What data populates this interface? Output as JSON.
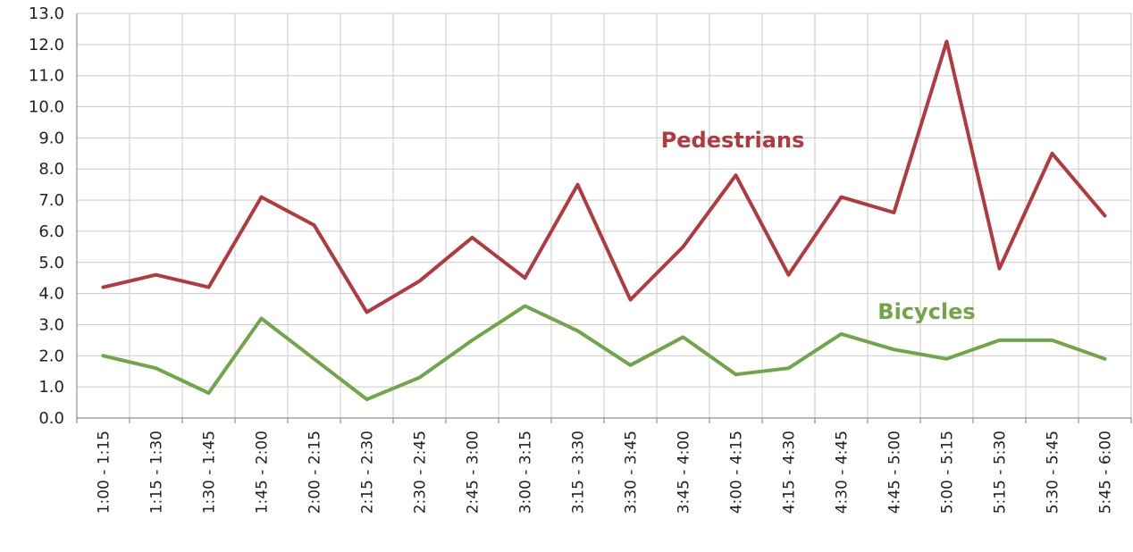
{
  "chart_data": {
    "type": "line",
    "title": "",
    "xlabel": "",
    "ylabel": "",
    "categories": [
      "1:00 - 1:15",
      "1:15 - 1:30",
      "1:30 - 1:45",
      "1:45 - 2:00",
      "2:00 - 2:15",
      "2:15 - 2:30",
      "2:30 - 2:45",
      "2:45 - 3:00",
      "3:00 - 3:15",
      "3:15 - 3:30",
      "3:30 - 3:45",
      "3:45 - 4:00",
      "4:00 - 4:15",
      "4:15 - 4:30",
      "4:30 - 4:45",
      "4:45 - 5:00",
      "5:00 - 5:15",
      "5:15 - 5:30",
      "5:30 - 5:45",
      "5:45 - 6:00"
    ],
    "series": [
      {
        "name": "Pedestrians",
        "color": "#b23a3f",
        "values": [
          4.2,
          4.6,
          4.2,
          7.1,
          6.2,
          3.4,
          4.4,
          5.8,
          4.5,
          7.5,
          3.8,
          5.5,
          7.8,
          4.6,
          7.1,
          6.6,
          12.1,
          4.8,
          8.5,
          6.5
        ]
      },
      {
        "name": "Bicycles",
        "color": "#70a548",
        "values": [
          2.0,
          1.6,
          0.8,
          3.2,
          1.9,
          0.6,
          1.3,
          2.5,
          3.6,
          2.8,
          1.7,
          2.6,
          1.4,
          1.6,
          2.7,
          2.2,
          1.9,
          2.5,
          2.5,
          1.9
        ]
      }
    ],
    "ylim": [
      0,
      13
    ],
    "yticks": [
      "0.0",
      "1.0",
      "2.0",
      "3.0",
      "4.0",
      "5.0",
      "6.0",
      "7.0",
      "8.0",
      "9.0",
      "10.0",
      "11.0",
      "12.0",
      "13.0"
    ],
    "grid": true,
    "legend": "inline labels"
  }
}
